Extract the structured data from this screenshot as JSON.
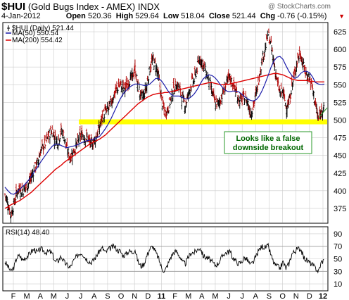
{
  "header": {
    "symbol": "$HUI",
    "description": "(Gold Bugs Index - AMEX)",
    "exchange": "INDX",
    "date": "4-Jan-2012",
    "open_label": "Open",
    "open": "520.36",
    "high_label": "High",
    "high": "529.64",
    "low_label": "Low",
    "low": "518.04",
    "close_label": "Close",
    "close": "521.44",
    "chg_label": "Chg",
    "chg": "-0.76 (-0.15%)",
    "chg_arrow": "▼",
    "credit": "@ StockCharts.com"
  },
  "legend": {
    "price": "$HUI (Daily) 521.44",
    "ma50": "MA(50) 550.54",
    "ma200": "MA(200) 554.42"
  },
  "annotation": {
    "line1": "Looks like a false",
    "line2": "downside breakout"
  },
  "rsi_legend": "RSI(14) 48.40",
  "colors": {
    "bars": "#000000",
    "ma50": "#1a1aa8",
    "ma200": "#dd0000",
    "highlight_band": "#ffff00",
    "annotation_text": "#006600",
    "annotation_border": "#2a9a2a",
    "grid": "#cccccc"
  },
  "chart_data": [
    {
      "type": "ohlc",
      "title": "$HUI (Gold Bugs Index - AMEX) INDX",
      "ylim": [
        355,
        637
      ],
      "y_ticks": [
        375,
        400,
        425,
        450,
        475,
        500,
        525,
        550,
        575,
        600,
        625
      ],
      "x_labels": [
        "F",
        "M",
        "A",
        "M",
        "J",
        "J",
        "A",
        "S",
        "O",
        "N",
        "D",
        "11",
        "F",
        "M",
        "A",
        "M",
        "J",
        "J",
        "A",
        "S",
        "O",
        "N",
        "D",
        "12"
      ],
      "x_label_bold": [
        "11",
        "12"
      ],
      "grid": true,
      "legend_position": "top-left",
      "band": [
        494,
        501
      ],
      "approx_weekly_close": [
        [
          0,
          395
        ],
        [
          1,
          383
        ],
        [
          2,
          365
        ],
        [
          3,
          380
        ],
        [
          4,
          398
        ],
        [
          5,
          404
        ],
        [
          6,
          400
        ],
        [
          7,
          405
        ],
        [
          8,
          410
        ],
        [
          9,
          420
        ],
        [
          10,
          432
        ],
        [
          11,
          440
        ],
        [
          12,
          455
        ],
        [
          13,
          463
        ],
        [
          14,
          470
        ],
        [
          15,
          480
        ],
        [
          16,
          486
        ],
        [
          17,
          474
        ],
        [
          18,
          470
        ],
        [
          19,
          486
        ],
        [
          20,
          477
        ],
        [
          21,
          458
        ],
        [
          22,
          447
        ],
        [
          23,
          455
        ],
        [
          24,
          462
        ],
        [
          25,
          473
        ],
        [
          26,
          480
        ],
        [
          27,
          476
        ],
        [
          28,
          474
        ],
        [
          29,
          465
        ],
        [
          30,
          470
        ],
        [
          31,
          478
        ],
        [
          32,
          490
        ],
        [
          33,
          505
        ],
        [
          34,
          512
        ],
        [
          35,
          515
        ],
        [
          36,
          527
        ],
        [
          37,
          536
        ],
        [
          38,
          545
        ],
        [
          39,
          550
        ],
        [
          40,
          545
        ],
        [
          41,
          547
        ],
        [
          42,
          556
        ],
        [
          43,
          560
        ],
        [
          44,
          572
        ],
        [
          45,
          548
        ],
        [
          46,
          533
        ],
        [
          47,
          535
        ],
        [
          48,
          550
        ],
        [
          49,
          573
        ],
        [
          50,
          585
        ],
        [
          51,
          578
        ],
        [
          52,
          560
        ],
        [
          53,
          528
        ],
        [
          54,
          510
        ],
        [
          55,
          515
        ],
        [
          56,
          528
        ],
        [
          57,
          543
        ],
        [
          58,
          551
        ],
        [
          59,
          545
        ],
        [
          60,
          530
        ],
        [
          61,
          522
        ],
        [
          62,
          535
        ],
        [
          63,
          552
        ],
        [
          64,
          557
        ],
        [
          65,
          574
        ],
        [
          66,
          588
        ],
        [
          67,
          578
        ],
        [
          68,
          567
        ],
        [
          69,
          556
        ],
        [
          70,
          540
        ],
        [
          71,
          525
        ],
        [
          72,
          522
        ],
        [
          73,
          530
        ],
        [
          74,
          543
        ],
        [
          75,
          553
        ],
        [
          76,
          560
        ],
        [
          77,
          552
        ],
        [
          78,
          542
        ],
        [
          79,
          530
        ],
        [
          80,
          527
        ],
        [
          81,
          532
        ],
        [
          82,
          527
        ],
        [
          83,
          510
        ],
        [
          84,
          520
        ],
        [
          85,
          538
        ],
        [
          86,
          563
        ],
        [
          87,
          587
        ],
        [
          88,
          602
        ],
        [
          89,
          622
        ],
        [
          90,
          605
        ],
        [
          91,
          580
        ],
        [
          92,
          555
        ],
        [
          93,
          538
        ],
        [
          94,
          540
        ],
        [
          95,
          520
        ],
        [
          96,
          523
        ],
        [
          97,
          548
        ],
        [
          98,
          566
        ],
        [
          99,
          588
        ],
        [
          100,
          593
        ],
        [
          101,
          575
        ],
        [
          102,
          564
        ],
        [
          103,
          560
        ],
        [
          104,
          544
        ],
        [
          105,
          522
        ],
        [
          106,
          500
        ],
        [
          107,
          513
        ],
        [
          108,
          525
        ]
      ],
      "series": [
        {
          "name": "MA(50)",
          "values": [
            405,
            400,
            396,
            395,
            398,
            402,
            406,
            410,
            415,
            421,
            427,
            433,
            440,
            446,
            452,
            458,
            463,
            466,
            466,
            464,
            462,
            461,
            462,
            463,
            464,
            466,
            468,
            470,
            471,
            472,
            473,
            475,
            477,
            482,
            488,
            495,
            503,
            512,
            521,
            530,
            537,
            542,
            546,
            549,
            551,
            551,
            550,
            549,
            549,
            551,
            555,
            559,
            559,
            555,
            549,
            542,
            537,
            534,
            534,
            534,
            532,
            530,
            530,
            533,
            537,
            543,
            551,
            558,
            562,
            564,
            563,
            560,
            555,
            549,
            544,
            541,
            540,
            541,
            541,
            540,
            537,
            533,
            530,
            528,
            527,
            529,
            534,
            542,
            552,
            563,
            575,
            584,
            589,
            590,
            586,
            577,
            569,
            563,
            559,
            561,
            566,
            569,
            569,
            567,
            561,
            553,
            551,
            550,
            551
          ]
        },
        {
          "name": "MA(200)",
          "values": [
            375,
            377,
            380,
            382,
            384,
            386,
            389,
            392,
            395,
            398,
            402,
            406,
            410,
            414,
            418,
            422,
            426,
            430,
            433,
            436,
            440,
            443,
            446,
            449,
            452,
            455,
            458,
            461,
            464,
            467,
            469,
            471,
            473,
            476,
            479,
            483,
            487,
            491,
            495,
            499,
            503,
            507,
            511,
            515,
            519,
            523,
            526,
            529,
            532,
            534,
            536,
            537,
            538,
            538,
            539,
            539,
            540,
            541,
            542,
            543,
            544,
            545,
            546,
            547,
            548,
            549,
            550,
            551,
            552,
            553,
            553,
            552,
            551,
            550,
            550,
            550,
            551,
            552,
            553,
            554,
            555,
            556,
            557,
            558,
            559,
            560,
            561,
            562,
            563,
            564,
            565,
            566,
            566,
            565,
            564,
            562,
            560,
            558,
            557,
            556,
            556,
            556,
            556,
            555,
            555,
            554,
            554,
            554,
            554
          ]
        }
      ]
    },
    {
      "type": "line",
      "title": "RSI(14)",
      "ylim": [
        0,
        100
      ],
      "y_ticks": [
        10,
        30,
        50,
        70,
        90
      ],
      "ref_lines": [
        30,
        70
      ],
      "grid": true,
      "series": [
        {
          "name": "RSI(14)",
          "values": [
            45,
            38,
            30,
            36,
            52,
            55,
            48,
            52,
            56,
            62,
            65,
            60,
            66,
            63,
            60,
            62,
            58,
            45,
            47,
            54,
            45,
            40,
            36,
            45,
            52,
            58,
            60,
            53,
            48,
            44,
            48,
            55,
            63,
            67,
            60,
            65,
            68,
            70,
            64,
            62,
            55,
            58,
            63,
            60,
            65,
            45,
            38,
            42,
            55,
            66,
            70,
            60,
            50,
            35,
            30,
            40,
            52,
            60,
            62,
            55,
            45,
            42,
            52,
            60,
            60,
            64,
            68,
            55,
            52,
            50,
            45,
            40,
            42,
            50,
            58,
            60,
            62,
            52,
            47,
            42,
            45,
            52,
            48,
            40,
            45,
            55,
            65,
            70,
            68,
            70,
            55,
            42,
            38,
            35,
            45,
            35,
            42,
            58,
            62,
            66,
            66,
            52,
            48,
            44,
            40,
            35,
            30,
            45,
            48
          ]
        }
      ]
    }
  ]
}
